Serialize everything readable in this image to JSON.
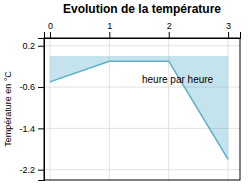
{
  "chart_data": {
    "type": "area",
    "title": "Evolution de la température",
    "y_label": "Température en °C",
    "annotations": [
      {
        "text": "heure par heure",
        "x": 1.55,
        "y": -0.38
      }
    ],
    "x": [
      0,
      1,
      2,
      3
    ],
    "y": [
      -0.5,
      -0.1,
      -0.1,
      -2.0
    ],
    "color": "#5aafca",
    "xlim": [
      -0.1,
      3.2
    ],
    "ylim": [
      -2.4,
      0.35
    ],
    "xticks": [
      0,
      1,
      2,
      3
    ],
    "yticks": [
      0.2,
      -0.6,
      -1.4,
      -2.2
    ],
    "grid": true
  }
}
